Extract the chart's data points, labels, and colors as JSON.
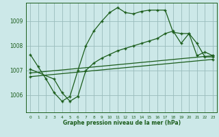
{
  "title": "Graphe pression niveau de la mer (hPa)",
  "bg_color": "#cce8e8",
  "grid_color": "#99bbbb",
  "line_color": "#1a5c1a",
  "xlim": [
    -0.5,
    23.5
  ],
  "ylim": [
    1005.3,
    1009.75
  ],
  "yticks": [
    1006,
    1007,
    1008,
    1009
  ],
  "xticks": [
    0,
    1,
    2,
    3,
    4,
    5,
    6,
    7,
    8,
    9,
    10,
    11,
    12,
    13,
    14,
    15,
    16,
    17,
    18,
    19,
    20,
    21,
    22,
    23
  ],
  "series1": {
    "x": [
      0,
      1,
      2,
      3,
      4,
      5,
      6,
      7,
      8,
      9,
      10,
      11,
      12,
      13,
      14,
      15,
      16,
      17,
      18,
      19,
      20,
      21,
      22,
      23
    ],
    "y": [
      1007.65,
      1007.15,
      1006.65,
      1006.1,
      1005.75,
      1005.95,
      1007.0,
      1008.0,
      1008.6,
      1009.0,
      1009.35,
      1009.55,
      1009.35,
      1009.3,
      1009.4,
      1009.45,
      1009.45,
      1009.45,
      1008.55,
      1008.5,
      1008.5,
      1008.1,
      1007.55,
      1007.55
    ]
  },
  "series2": {
    "x": [
      0,
      3,
      4,
      5,
      6,
      7,
      8,
      9,
      10,
      11,
      12,
      13,
      14,
      15,
      16,
      17,
      18,
      19,
      20,
      21,
      22,
      23
    ],
    "y": [
      1007.05,
      1006.65,
      1006.1,
      1005.75,
      1005.95,
      1007.0,
      1007.3,
      1007.5,
      1007.65,
      1007.8,
      1007.9,
      1008.0,
      1008.1,
      1008.2,
      1008.3,
      1008.5,
      1008.6,
      1008.1,
      1008.5,
      1007.6,
      1007.75,
      1007.6
    ]
  },
  "series3": {
    "x": [
      0,
      23
    ],
    "y": [
      1006.9,
      1007.6
    ]
  },
  "series4": {
    "x": [
      0,
      23
    ],
    "y": [
      1006.75,
      1007.45
    ]
  }
}
